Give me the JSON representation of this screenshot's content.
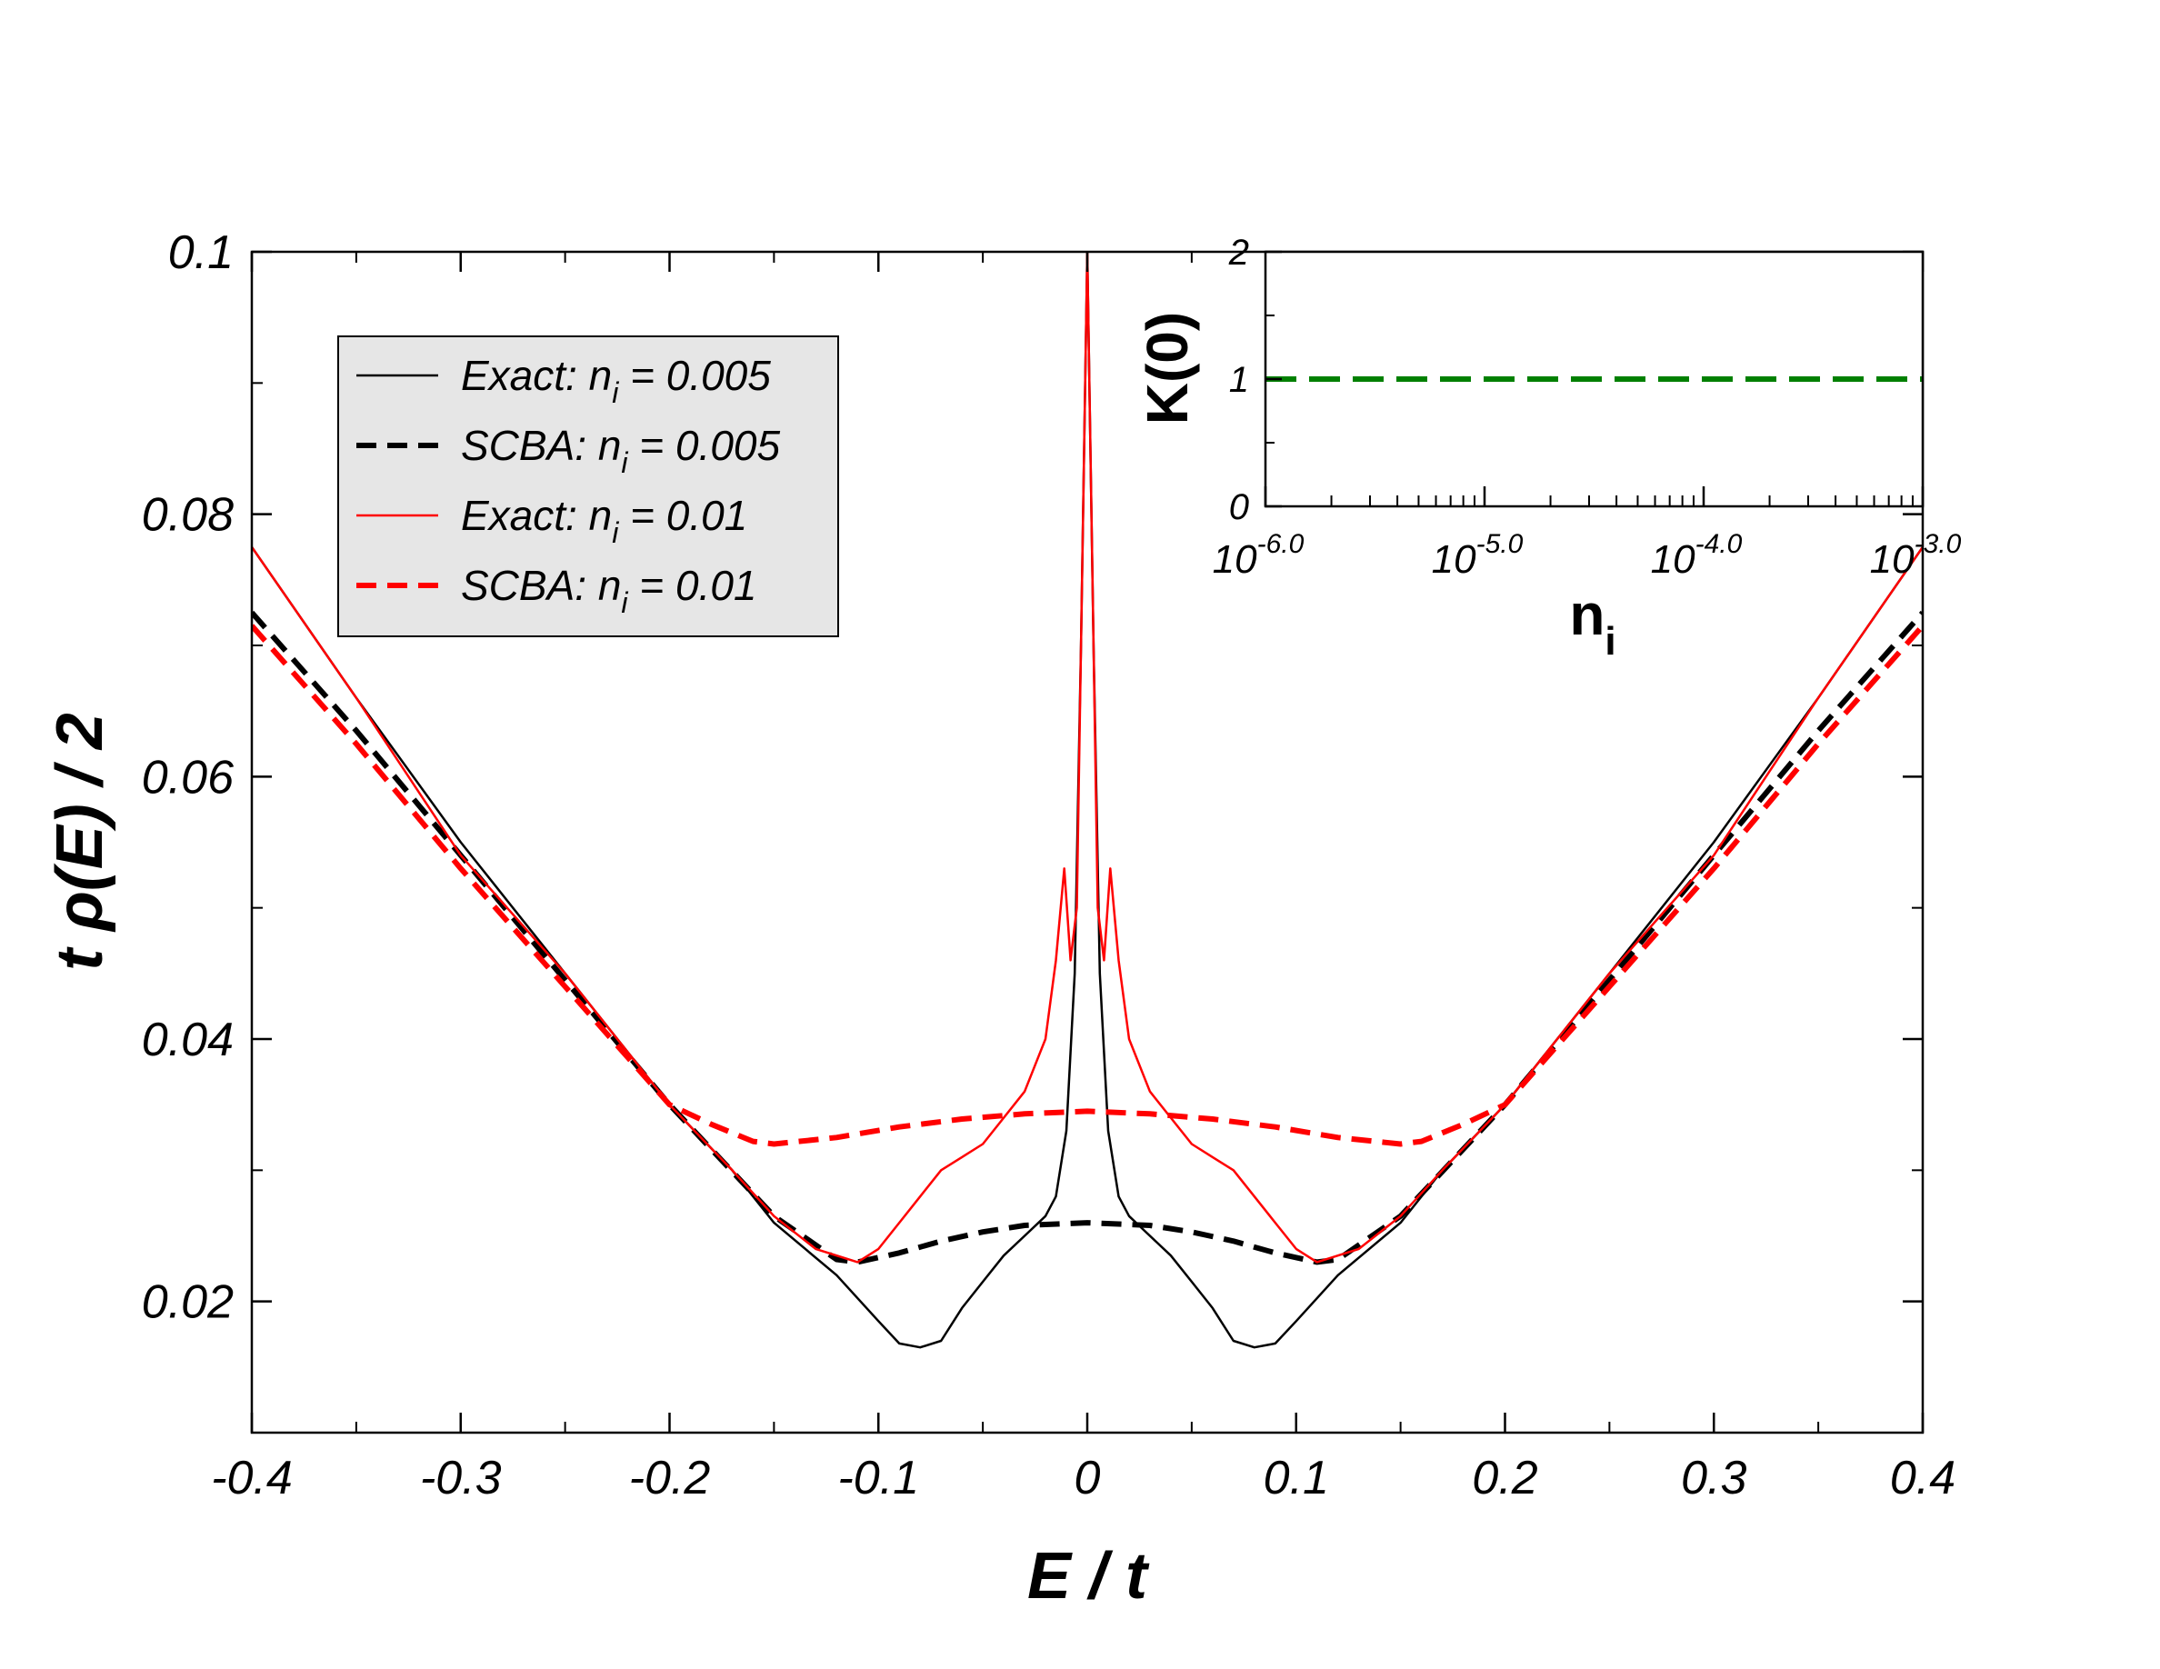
{
  "chart_data": [
    {
      "type": "line",
      "id": "main",
      "xlabel": "E / t",
      "ylabel": "t ρ(E) / 2",
      "xlim": [
        -0.4,
        0.4
      ],
      "ylim": [
        0.01,
        0.1
      ],
      "xticks": [
        -0.4,
        -0.3,
        -0.2,
        -0.1,
        0,
        0.1,
        0.2,
        0.3,
        0.4
      ],
      "xtick_labels": [
        "-0.4",
        "-0.3",
        "-0.2",
        "-0.1",
        "0",
        "0.1",
        "0.2",
        "0.3",
        "0.4"
      ],
      "yticks": [
        0.02,
        0.04,
        0.06,
        0.08,
        0.1
      ],
      "ytick_labels": [
        "0.02",
        "0.04",
        "0.06",
        "0.08",
        "0.1"
      ],
      "legend_position": "top-left",
      "series": [
        {
          "name": "Exact: n_i = 0.005",
          "legend_label_prefix": "Exact: n",
          "legend_sub": "i",
          "legend_suffix": " = 0.005",
          "color": "#000000",
          "style": "solid",
          "x": [
            -0.4,
            -0.35,
            -0.3,
            -0.25,
            -0.2,
            -0.17,
            -0.15,
            -0.12,
            -0.1,
            -0.09,
            -0.08,
            -0.07,
            -0.06,
            -0.05,
            -0.04,
            -0.03,
            -0.02,
            -0.015,
            -0.01,
            -0.006,
            -0.003,
            0,
            0.003,
            0.006,
            0.01,
            0.015,
            0.02,
            0.03,
            0.04,
            0.05,
            0.06,
            0.07,
            0.08,
            0.09,
            0.1,
            0.12,
            0.15,
            0.17,
            0.2,
            0.25,
            0.3,
            0.35,
            0.4
          ],
          "y": [
            0.0775,
            0.066,
            0.055,
            0.045,
            0.035,
            0.03,
            0.026,
            0.022,
            0.0185,
            0.0168,
            0.0165,
            0.017,
            0.0195,
            0.0215,
            0.0235,
            0.025,
            0.0265,
            0.028,
            0.033,
            0.045,
            0.07,
            0.1,
            0.07,
            0.045,
            0.033,
            0.028,
            0.0265,
            0.025,
            0.0235,
            0.0215,
            0.0195,
            0.017,
            0.0165,
            0.0168,
            0.0185,
            0.022,
            0.026,
            0.03,
            0.035,
            0.045,
            0.055,
            0.066,
            0.0775
          ]
        },
        {
          "name": "SCBA: n_i = 0.005",
          "legend_label_prefix": "SCBA: n",
          "legend_sub": "i",
          "legend_suffix": " = 0.005",
          "color": "#000000",
          "style": "dashed",
          "x": [
            -0.4,
            -0.35,
            -0.3,
            -0.25,
            -0.2,
            -0.15,
            -0.12,
            -0.11,
            -0.09,
            -0.07,
            -0.05,
            -0.03,
            0,
            0.03,
            0.05,
            0.07,
            0.09,
            0.11,
            0.12,
            0.15,
            0.2,
            0.25,
            0.3,
            0.35,
            0.4
          ],
          "y": [
            0.0725,
            0.0635,
            0.054,
            0.0445,
            0.035,
            0.0265,
            0.0232,
            0.023,
            0.0237,
            0.0246,
            0.0253,
            0.0258,
            0.026,
            0.0258,
            0.0253,
            0.0246,
            0.0237,
            0.023,
            0.0232,
            0.0265,
            0.035,
            0.0445,
            0.054,
            0.0635,
            0.0725
          ]
        },
        {
          "name": "Exact: n_i = 0.01",
          "legend_label_prefix": "Exact: n",
          "legend_sub": "i",
          "legend_suffix": " = 0.01",
          "color": "#ff0000",
          "style": "solid",
          "x": [
            -0.4,
            -0.35,
            -0.3,
            -0.25,
            -0.2,
            -0.17,
            -0.15,
            -0.13,
            -0.11,
            -0.1,
            -0.09,
            -0.08,
            -0.07,
            -0.06,
            -0.05,
            -0.04,
            -0.03,
            -0.02,
            -0.015,
            -0.011,
            -0.008,
            -0.005,
            -0.003,
            0,
            0.003,
            0.005,
            0.008,
            0.011,
            0.015,
            0.02,
            0.03,
            0.04,
            0.05,
            0.06,
            0.07,
            0.08,
            0.09,
            0.1,
            0.11,
            0.13,
            0.15,
            0.17,
            0.2,
            0.25,
            0.3,
            0.35,
            0.4
          ],
          "y": [
            0.0775,
            0.066,
            0.054,
            0.045,
            0.035,
            0.03,
            0.0265,
            0.024,
            0.023,
            0.024,
            0.026,
            0.028,
            0.03,
            0.031,
            0.032,
            0.034,
            0.036,
            0.04,
            0.046,
            0.053,
            0.046,
            0.05,
            0.07,
            0.1,
            0.07,
            0.05,
            0.046,
            0.053,
            0.046,
            0.04,
            0.036,
            0.034,
            0.032,
            0.031,
            0.03,
            0.028,
            0.026,
            0.024,
            0.023,
            0.024,
            0.0265,
            0.03,
            0.035,
            0.045,
            0.054,
            0.066,
            0.0775
          ]
        },
        {
          "name": "SCBA: n_i = 0.01",
          "legend_label_prefix": "SCBA: n",
          "legend_sub": "i",
          "legend_suffix": " = 0.01",
          "color": "#ff0000",
          "style": "dashed",
          "x": [
            -0.4,
            -0.35,
            -0.3,
            -0.25,
            -0.2,
            -0.18,
            -0.16,
            -0.15,
            -0.12,
            -0.09,
            -0.06,
            -0.03,
            0,
            0.03,
            0.06,
            0.09,
            0.12,
            0.15,
            0.16,
            0.18,
            0.2,
            0.25,
            0.3,
            0.35,
            0.4
          ],
          "y": [
            0.0715,
            0.0625,
            0.053,
            0.044,
            0.035,
            0.0335,
            0.0322,
            0.032,
            0.0325,
            0.0333,
            0.0339,
            0.0343,
            0.0345,
            0.0343,
            0.0339,
            0.0333,
            0.0325,
            0.032,
            0.0322,
            0.0335,
            0.035,
            0.044,
            0.053,
            0.0625,
            0.0715
          ]
        }
      ]
    },
    {
      "type": "line",
      "id": "inset",
      "xlabel": "n",
      "xlabel_sub": "i",
      "ylabel": "K(0)",
      "xscale": "log",
      "xlim": [
        1e-06,
        0.001
      ],
      "ylim": [
        0,
        2
      ],
      "yticks": [
        0,
        1,
        2
      ],
      "ytick_labels": [
        "0",
        "1",
        "2"
      ],
      "xticks": [
        -6.0,
        -5.0,
        -4.0,
        -3.0
      ],
      "xtick_bases": [
        "10",
        "10",
        "10",
        "10"
      ],
      "xtick_exponents": [
        "-6.0",
        "-5.0",
        "-4.0",
        "-3.0"
      ],
      "series": [
        {
          "name": "K(0)",
          "color": "#008000",
          "style": "dashed",
          "x": [
            1e-06,
            0.001
          ],
          "y": [
            1,
            1
          ]
        }
      ]
    }
  ]
}
